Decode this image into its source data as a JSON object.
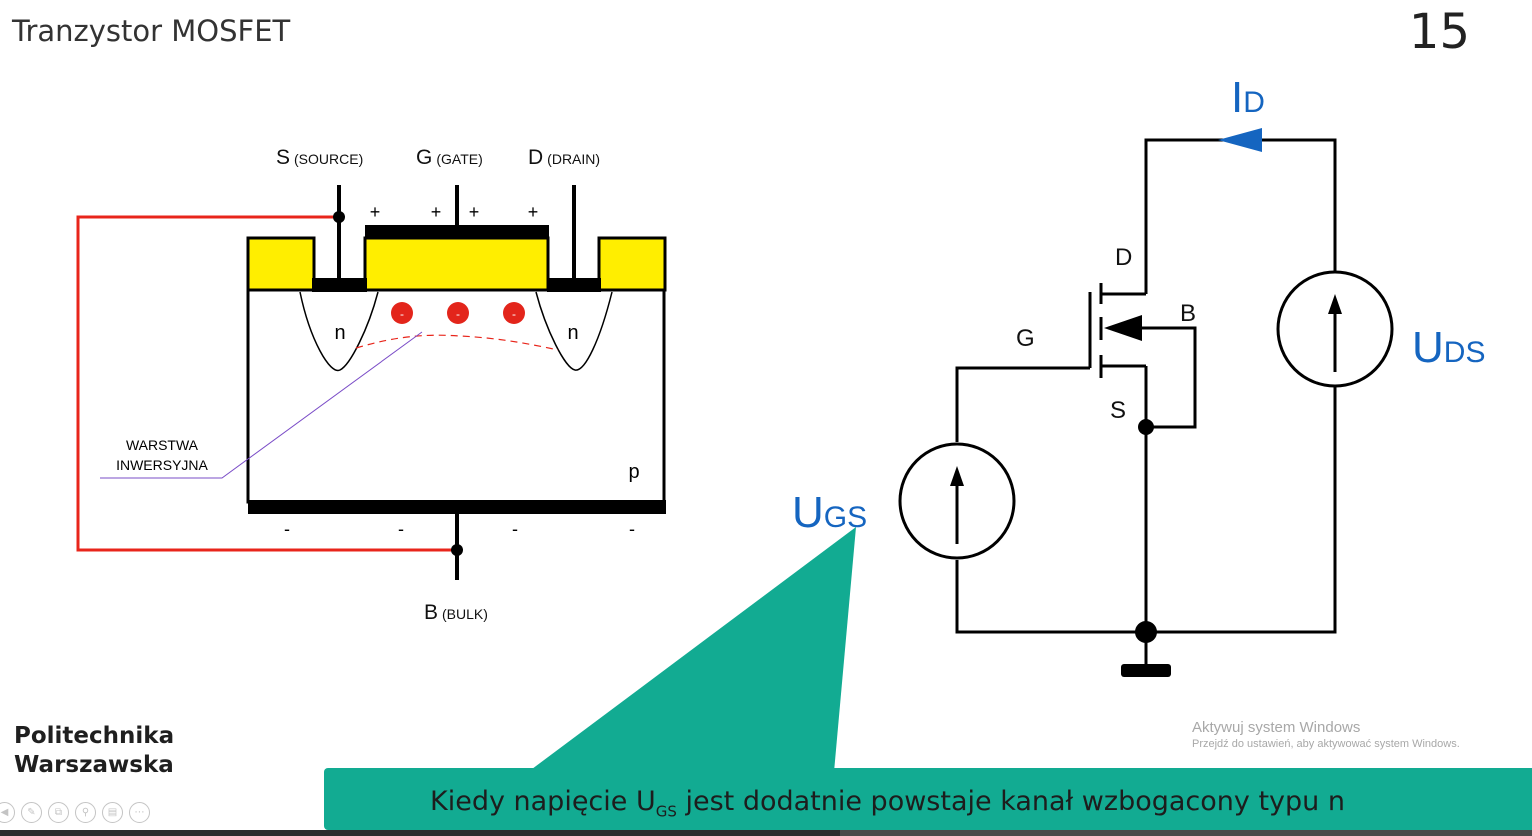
{
  "slide": {
    "title": "Tranzystor MOSFET",
    "number": "15"
  },
  "cross_section": {
    "terminal_s": "S",
    "terminal_s_sub": "(SOURCE)",
    "terminal_g": "G",
    "terminal_g_sub": "(GATE)",
    "terminal_d": "D",
    "terminal_d_sub": "(DRAIN)",
    "terminal_b": "B",
    "terminal_b_sub": "(BULK)",
    "plus": "+",
    "minus": "-",
    "electron": "-",
    "n_left": "n",
    "n_right": "n",
    "substrate": "p",
    "inversion_line1": "WARSTWA",
    "inversion_line2": "INWERSYJNA"
  },
  "circuit": {
    "id_main": "I",
    "id_sub": "D",
    "uds_main": "U",
    "uds_sub": "DS",
    "ugs_main": "U",
    "ugs_sub": "GS",
    "pin_d": "D",
    "pin_g": "G",
    "pin_s": "S",
    "pin_b": "B"
  },
  "caption": {
    "before": "Kiedy napięcie U",
    "sub": "GS",
    "after": " jest dodatnie powstaje kanał wzbogacony typu n"
  },
  "logo": {
    "line1": "Politechnika",
    "line2": "Warszawska"
  },
  "watermark": {
    "line1": "Aktywuj system Windows",
    "line2": "Przejdź do ustawień, aby aktywować system Windows."
  },
  "colors": {
    "gate_yellow": "#ffee00",
    "wire_red": "#e8251b",
    "label_blue": "#1565c0",
    "caption_green": "#12ab92",
    "electron_red": "#e3251b",
    "inversion_purple": "#7a4cc7"
  },
  "nav_icons": [
    "back-icon",
    "pen-icon",
    "copy-icon",
    "zoom-icon",
    "subtitles-icon",
    "more-icon"
  ]
}
